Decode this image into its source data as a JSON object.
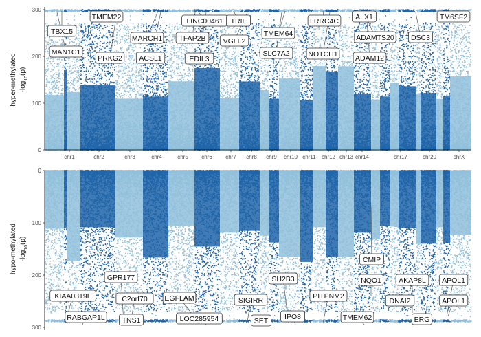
{
  "chart_data": [
    {
      "type": "scatter",
      "panel": "top",
      "ylabel_line1": "hyper-methylated",
      "ylabel_line2": "-log10(p)",
      "ylim": [
        0,
        300
      ],
      "yticks": [
        "0",
        "100",
        "200",
        "300"
      ],
      "yticks_values": [
        0,
        100,
        200,
        300
      ],
      "chromosomes": [
        "chr1",
        "chr2",
        "chr3",
        "chr4",
        "chr5",
        "chr6",
        "chr7",
        "chr8",
        "chr9",
        "chr10",
        "chr11",
        "chr12",
        "chr13",
        "chr14",
        "chr17",
        "chr20",
        "chrX"
      ],
      "colors": [
        "#91bfdb",
        "#1f64a8"
      ],
      "labels": [
        "TBX15",
        "MAN1C1",
        "TMEM22",
        "PRKG2",
        "MARCH1",
        "ACSL1",
        "LINC00461",
        "TFAP2B",
        "EDIL3",
        "TRIL",
        "VGLL2",
        "TMEM64",
        "SLC7A2",
        "LRRC4C",
        "NOTCH1",
        "ALX1",
        "ADAMTS20",
        "ADAM12",
        "DSC3",
        "TM6SF2"
      ]
    },
    {
      "type": "scatter",
      "panel": "bottom",
      "ylabel_line1": "hypo-methylated",
      "ylabel_line2": "-log10(p)",
      "ylim": [
        300,
        0
      ],
      "yticks": [
        "0",
        "100",
        "200",
        "300"
      ],
      "yticks_values": [
        0,
        100,
        200,
        300
      ],
      "colors": [
        "#91bfdb",
        "#1f64a8"
      ],
      "labels": [
        "KIAA0319L",
        "RABGAP1L",
        "GPR177",
        "C2orf70",
        "TNS1",
        "EGFLAM",
        "LOC285954",
        "SIGIRR",
        "SET",
        "SH2B3",
        "IPO8",
        "PITPNM2",
        "TMEM62",
        "CMIP",
        "NQO1",
        "DNAI2",
        "AKAP8L",
        "ERG",
        "APOL1",
        "APOL1"
      ]
    }
  ]
}
